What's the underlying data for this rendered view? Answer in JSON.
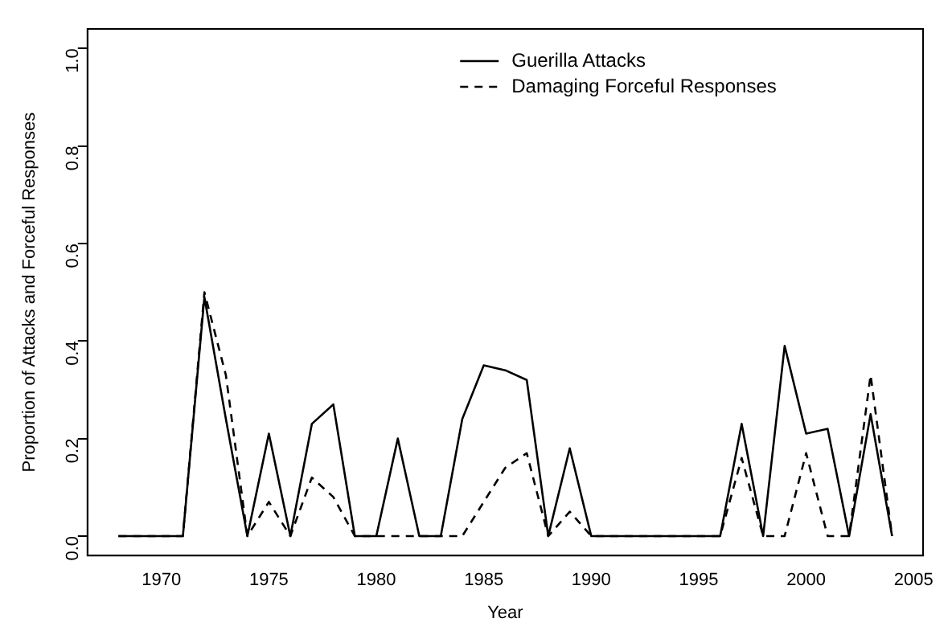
{
  "chart_data": {
    "type": "line",
    "xlabel": "Year",
    "ylabel": "Proportion of Attacks and Forceful Responses",
    "x": [
      1968,
      1969,
      1970,
      1971,
      1972,
      1973,
      1974,
      1975,
      1976,
      1977,
      1978,
      1979,
      1980,
      1981,
      1982,
      1983,
      1984,
      1985,
      1986,
      1987,
      1988,
      1989,
      1990,
      1991,
      1992,
      1993,
      1994,
      1995,
      1996,
      1997,
      1998,
      1999,
      2000,
      2001,
      2002,
      2003,
      2004
    ],
    "series": [
      {
        "name": "Guerilla Attacks",
        "color": "#000000",
        "line_style": "solid",
        "values": [
          0,
          0,
          0,
          0,
          0.49,
          0.24,
          0,
          0.21,
          0,
          0.23,
          0.27,
          0,
          0,
          0.2,
          0,
          0,
          0.24,
          0.35,
          0.34,
          0.32,
          0,
          0.18,
          0,
          0,
          0,
          0,
          0,
          0,
          0,
          0.23,
          0,
          0.39,
          0.21,
          0.22,
          0,
          0.25,
          0
        ]
      },
      {
        "name": "Damaging Forceful Responses",
        "color": "#000000",
        "line_style": "dashed",
        "values": [
          0,
          0,
          0,
          0,
          0.5,
          0.33,
          0,
          0.07,
          0,
          0.12,
          0.08,
          0,
          0,
          0,
          0,
          0,
          0,
          0.07,
          0.14,
          0.17,
          0,
          0.05,
          0,
          0,
          0,
          0,
          0,
          0,
          0,
          0.16,
          0,
          0,
          0.17,
          0,
          0,
          0.33,
          0
        ]
      }
    ],
    "xlim": [
      1966.56,
      2005.44
    ],
    "xticks": [
      1970,
      1975,
      1980,
      1985,
      1990,
      1995,
      2000,
      2005
    ],
    "ylim": [
      -0.04,
      1.04
    ],
    "yticks": [
      {
        "value": 0,
        "label": "0.0"
      },
      {
        "value": 0.2,
        "label": "0.2"
      },
      {
        "value": 0.4,
        "label": "0.4"
      },
      {
        "value": 0.6,
        "label": "0.6"
      },
      {
        "value": 0.8,
        "label": "0.8"
      },
      {
        "value": 1,
        "label": "1.0"
      }
    ],
    "grid": false,
    "legend": "top right",
    "marker": "none"
  }
}
